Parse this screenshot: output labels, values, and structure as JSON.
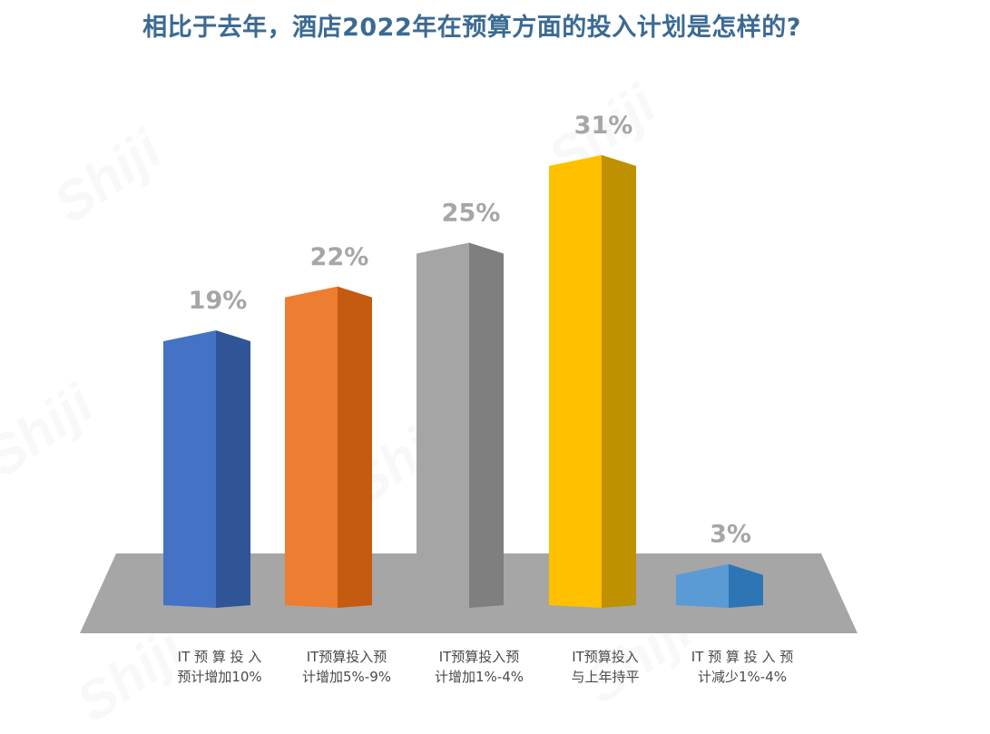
{
  "watermark": "Shiji",
  "chart_data": {
    "type": "bar",
    "title": "相比于去年，酒店2022年在预算方面的投入计划是怎样的?",
    "categories": [
      "IT预算投入预计增加10%",
      "IT预算投入预计增加5%-9%",
      "IT预算投入预计增加1%-4%",
      "IT预算投入与上年持平",
      "IT预算投入预计减少1%-4%"
    ],
    "category_lines": [
      [
        "IT 预 算 投 入",
        "预计增加10%"
      ],
      [
        "IT预算投入预",
        "计增加5%-9%"
      ],
      [
        "IT预算投入预",
        "计增加1%-4%"
      ],
      [
        "IT预算投入",
        "与上年持平"
      ],
      [
        "IT 预 算 投 入 预",
        "计减少1%-4%"
      ]
    ],
    "values": [
      19,
      22,
      25,
      31,
      3
    ],
    "data_labels": [
      "19%",
      "22%",
      "25%",
      "31%",
      "3%"
    ],
    "unit": "%",
    "colors": [
      {
        "front": "#4472c4",
        "side": "#2f5597"
      },
      {
        "front": "#ed7d31",
        "side": "#c55a11"
      },
      {
        "front": "#a5a5a5",
        "side": "#7f7f7f"
      },
      {
        "front": "#ffc000",
        "side": "#bf9000"
      },
      {
        "front": "#5b9bd5",
        "side": "#2e75b6"
      }
    ],
    "floor_color": "#a6a6a6",
    "xlabel": "",
    "ylabel": "",
    "grid": false,
    "legend": "none"
  }
}
